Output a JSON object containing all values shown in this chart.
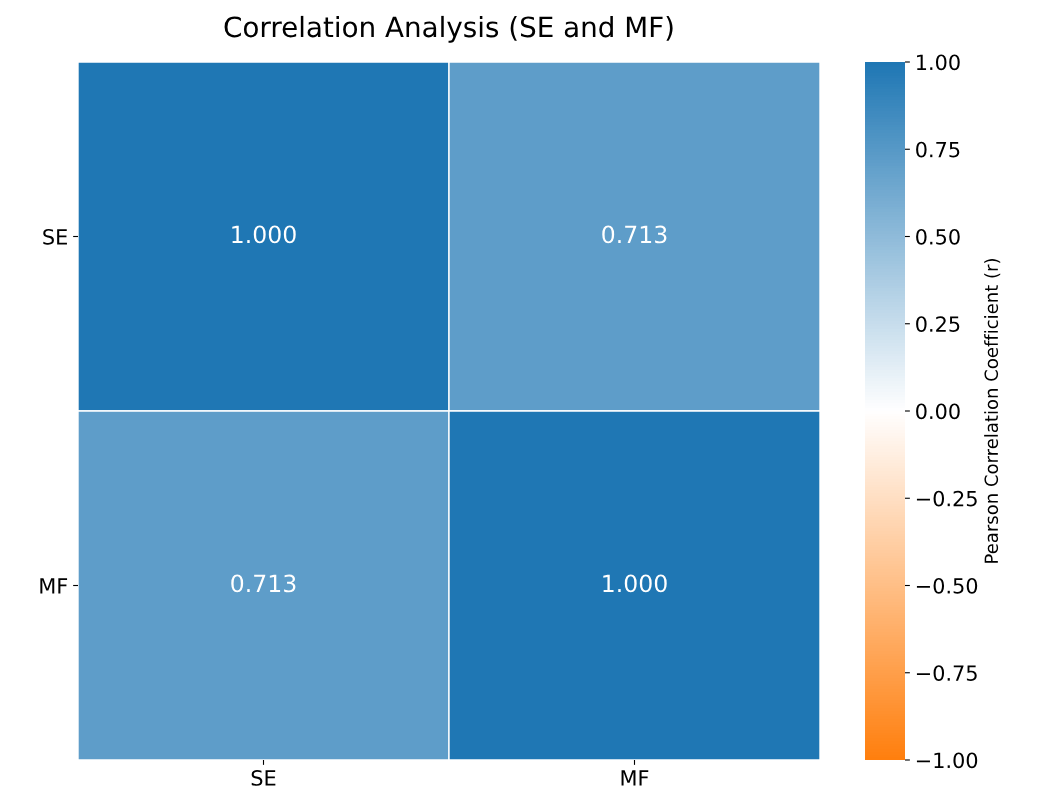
{
  "chart_data": {
    "type": "heatmap",
    "title": "Correlation Analysis (SE and MF)",
    "categories": [
      "SE",
      "MF"
    ],
    "y_categories": [
      "SE",
      "MF"
    ],
    "cells": [
      [
        1.0,
        0.713
      ],
      [
        0.713,
        1.0
      ]
    ],
    "cell_labels": [
      [
        "1.000",
        "0.713"
      ],
      [
        "0.713",
        "1.000"
      ]
    ],
    "colors": [
      "#ff7f0e",
      "#ffffff",
      "#1f77b4"
    ],
    "clabel": "Pearson Correlation Coefficient (r)",
    "clim": [
      -1,
      1
    ],
    "cticks": [
      {
        "value": 1,
        "label": "1.00"
      },
      {
        "value": 0.75,
        "label": "0.75"
      },
      {
        "value": 0.5,
        "label": "0.50"
      },
      {
        "value": 0.25,
        "label": "0.25"
      },
      {
        "value": 0,
        "label": "0.00"
      },
      {
        "value": -0.25,
        "label": "−0.25"
      },
      {
        "value": -0.5,
        "label": "−0.50"
      },
      {
        "value": -0.75,
        "label": "−0.75"
      },
      {
        "value": -1,
        "label": "−1.00"
      }
    ]
  }
}
